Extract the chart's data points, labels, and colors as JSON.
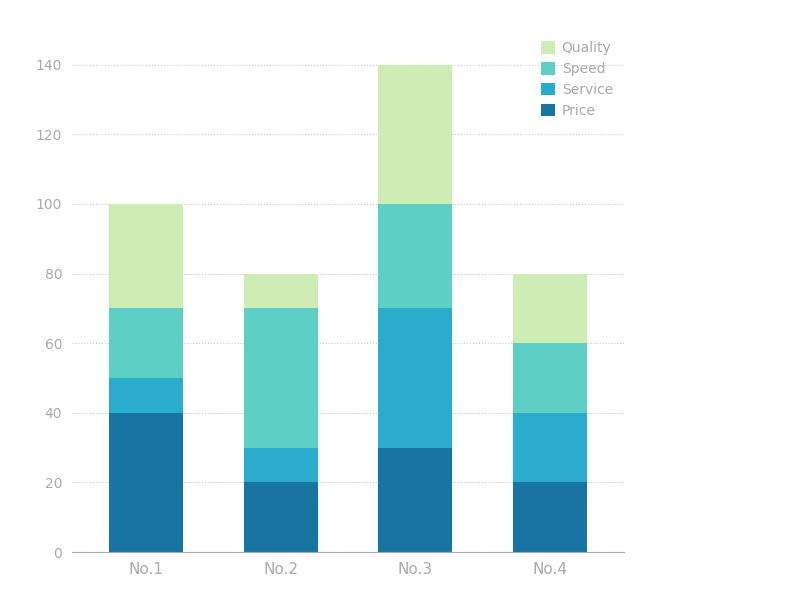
{
  "categories": [
    "No.1",
    "No.2",
    "No.3",
    "No.4"
  ],
  "series": {
    "Price": [
      40,
      20,
      30,
      20
    ],
    "Service": [
      10,
      10,
      40,
      20
    ],
    "Speed": [
      20,
      40,
      30,
      20
    ],
    "Quality": [
      30,
      10,
      40,
      20
    ]
  },
  "colors": {
    "Price": "#1874a0",
    "Service": "#2aadcc",
    "Speed": "#5dcfc5",
    "Quality": "#cdedb4"
  },
  "legend_order": [
    "Quality",
    "Speed",
    "Service",
    "Price"
  ],
  "ylim": [
    0,
    150
  ],
  "yticks": [
    0,
    20,
    40,
    60,
    80,
    100,
    120,
    140
  ],
  "bar_width": 0.55,
  "background_color": "#ffffff",
  "grid_color": "#c8c8c8",
  "tick_color": "#aaaaaa",
  "label_color": "#aaaaaa",
  "figsize": [
    8.0,
    6.0
  ],
  "dpi": 100,
  "legend_fontsize": 10,
  "tick_fontsize": 10,
  "xlabel_fontsize": 11
}
